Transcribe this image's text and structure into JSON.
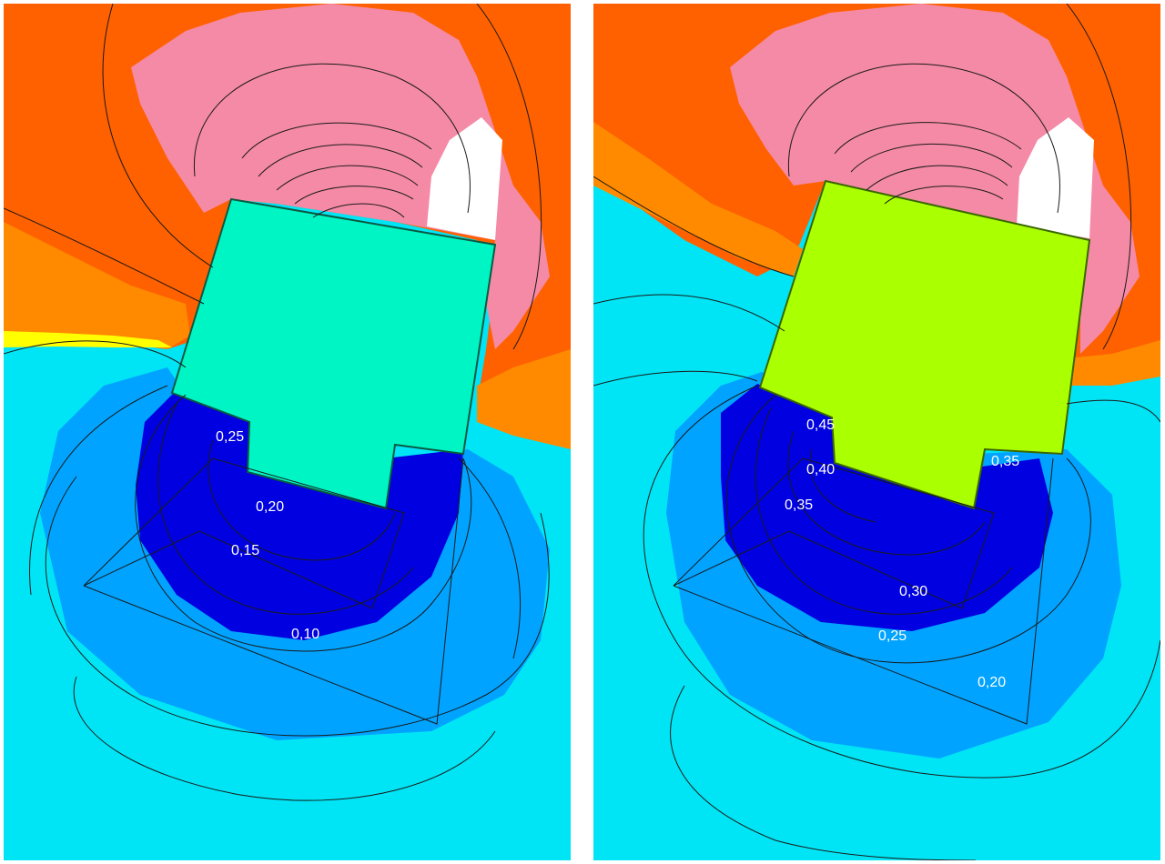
{
  "colors": {
    "orange": "#ff6000",
    "orange_light": "#ff8a00",
    "pink": "#f58aa6",
    "cyan": "#00e5f5",
    "light_blue": "#00a3ff",
    "dark_blue": "#0000e0",
    "building_left": "#00f5c5",
    "building_right": "#aaff00",
    "yellow": "#ffff00",
    "white": "#ffffff"
  },
  "panels": [
    {
      "id": "left",
      "building_color": "#00f5c5",
      "contour_labels": [
        {
          "text": "0,25"
        },
        {
          "text": "0,20"
        },
        {
          "text": "0,15"
        },
        {
          "text": "0,10"
        }
      ]
    },
    {
      "id": "right",
      "building_color": "#aaff00",
      "contour_labels": [
        {
          "text": "0,45"
        },
        {
          "text": "0,40"
        },
        {
          "text": "0,35"
        },
        {
          "text": "0,35"
        },
        {
          "text": "0,30"
        },
        {
          "text": "0,25"
        },
        {
          "text": "0,20"
        }
      ]
    }
  ]
}
